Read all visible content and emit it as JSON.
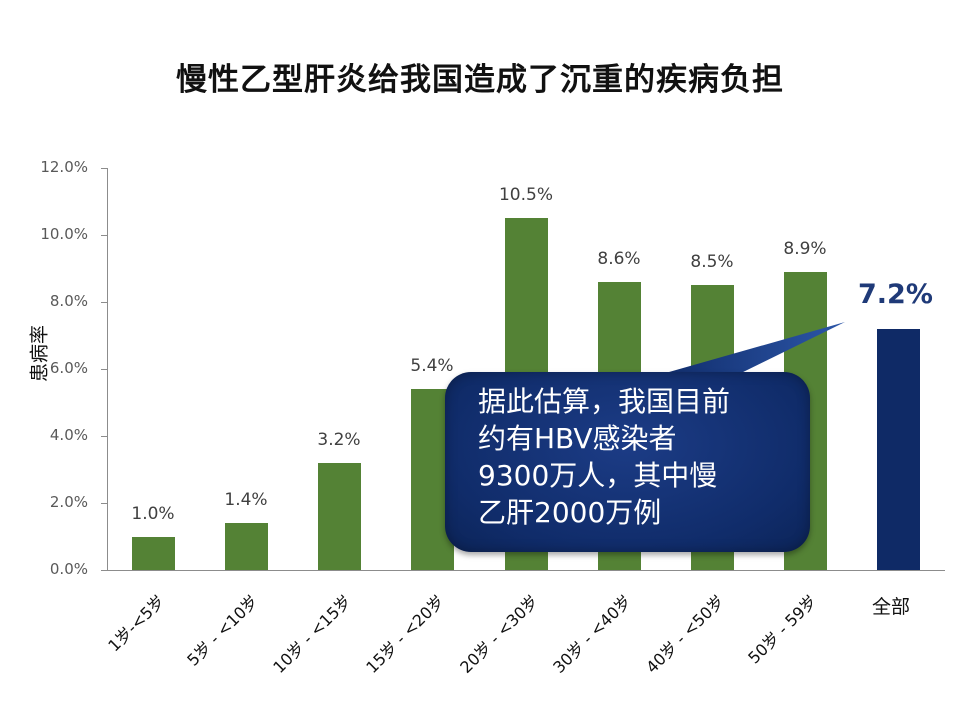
{
  "title": "慢性乙型肝炎给我国造成了沉重的疾病负担",
  "callout": {
    "lines": [
      "据此估算，我国目前",
      "约有HBV感染者",
      "9300万人，其中慢",
      "乙肝2000万例"
    ]
  },
  "colors": {
    "age_bars": "#548235",
    "total_bar": "#0f2a66",
    "callout": "#102c6a"
  },
  "chart_data": {
    "type": "bar",
    "title": "慢性乙型肝炎给我国造成了沉重的疾病负担",
    "xlabel": "",
    "ylabel": "患病率",
    "ylim": [
      0,
      12
    ],
    "yticks": [
      "0.0%",
      "2.0%",
      "4.0%",
      "6.0%",
      "8.0%",
      "10.0%",
      "12.0%"
    ],
    "grid": false,
    "legend": null,
    "categories": [
      "1岁-<5岁",
      "5岁 - <10岁",
      "10岁 - <15岁",
      "15岁 - <20岁",
      "20岁 - <30岁",
      "30岁 - <40岁",
      "40岁 - <50岁",
      "50岁 - 59岁",
      "全部"
    ],
    "values": [
      1.0,
      1.4,
      3.2,
      5.4,
      10.5,
      8.6,
      8.5,
      8.9,
      7.2
    ],
    "labels": [
      "1.0%",
      "1.4%",
      "3.2%",
      "5.4%",
      "10.5%",
      "8.6%",
      "8.5%",
      "8.9%",
      "7.2%"
    ],
    "annotations": [
      "据此估算，我国目前约有HBV感染者9300万人，其中慢乙肝2000万例"
    ]
  }
}
